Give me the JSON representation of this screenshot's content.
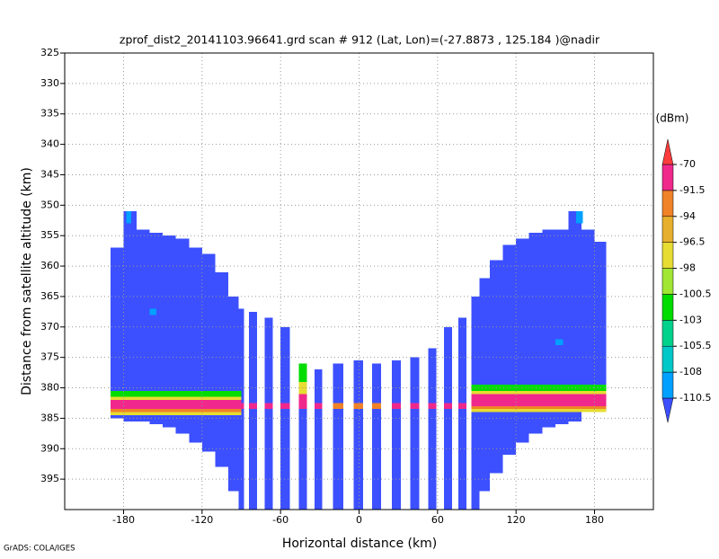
{
  "chart_data": {
    "type": "heatmap",
    "title": "zprof_dist2_20141103.96641.grd  scan # 912  (Lat, Lon)=(-27.8873 , 125.184 )@nadir",
    "x_label": "Horizontal distance (km)",
    "y_label": "Distance from satellite altitude (km)",
    "credit": "GrADS: COLA/IGES",
    "xlim": [
      -225,
      225
    ],
    "ylim": [
      325,
      400
    ],
    "y_reversed": true,
    "xticks": [
      -180,
      -120,
      -60,
      0,
      60,
      120,
      180
    ],
    "yticks": [
      325,
      330,
      335,
      340,
      345,
      350,
      355,
      360,
      365,
      370,
      375,
      380,
      385,
      390,
      395
    ],
    "grid": true,
    "colorbar": {
      "label": "(dBm)",
      "levels": [
        -110.5,
        -108,
        -105.5,
        -103,
        -100.5,
        -98,
        -96.5,
        -94,
        -91.5,
        -70
      ],
      "colors": [
        "#3c50ff",
        "#00a0ff",
        "#00c8c8",
        "#00d28c",
        "#00dc00",
        "#a0e632",
        "#e6dc32",
        "#e6af2d",
        "#f08228",
        "#f0288c",
        "#fa3c3c"
      ]
    },
    "cells": [
      {
        "x": [
          -190,
          -180
        ],
        "y": [
          357,
          385
        ],
        "value": -115
      },
      {
        "x": [
          -180,
          -170
        ],
        "y": [
          351,
          385.5
        ],
        "value": -115
      },
      {
        "x": [
          -170,
          -160
        ],
        "y": [
          354,
          385.5
        ],
        "value": -115
      },
      {
        "x": [
          -160,
          -150
        ],
        "y": [
          354.5,
          386
        ],
        "value": -115
      },
      {
        "x": [
          -150,
          -140
        ],
        "y": [
          355,
          386.5
        ],
        "value": -115
      },
      {
        "x": [
          -140,
          -130
        ],
        "y": [
          355.5,
          387.5
        ],
        "value": -115
      },
      {
        "x": [
          -130,
          -120
        ],
        "y": [
          357,
          389
        ],
        "value": -115
      },
      {
        "x": [
          -120,
          -110
        ],
        "y": [
          358,
          390.5
        ],
        "value": -115
      },
      {
        "x": [
          -110,
          -100
        ],
        "y": [
          361,
          393
        ],
        "value": -115
      },
      {
        "x": [
          -100,
          -92
        ],
        "y": [
          365,
          397
        ],
        "value": -115
      },
      {
        "x": [
          -92,
          -88
        ],
        "y": [
          367,
          400
        ],
        "value": -115
      },
      {
        "x": [
          -84,
          -78
        ],
        "y": [
          367.5,
          400
        ],
        "value": -115
      },
      {
        "x": [
          -72,
          -66
        ],
        "y": [
          368.5,
          400
        ],
        "value": -115
      },
      {
        "x": [
          -60,
          -53
        ],
        "y": [
          370,
          400
        ],
        "value": -115
      },
      {
        "x": [
          -46,
          -40
        ],
        "y": [
          376,
          400
        ],
        "value": -115
      },
      {
        "x": [
          -34,
          -28
        ],
        "y": [
          377,
          400
        ],
        "value": -115
      },
      {
        "x": [
          -20,
          -12
        ],
        "y": [
          376,
          400
        ],
        "value": -115
      },
      {
        "x": [
          -4,
          3
        ],
        "y": [
          375.5,
          400
        ],
        "value": -115
      },
      {
        "x": [
          10,
          17
        ],
        "y": [
          376,
          400
        ],
        "value": -115
      },
      {
        "x": [
          25,
          32
        ],
        "y": [
          375.5,
          400
        ],
        "value": -115
      },
      {
        "x": [
          39,
          46
        ],
        "y": [
          375,
          400
        ],
        "value": -115
      },
      {
        "x": [
          53,
          59
        ],
        "y": [
          373.5,
          400
        ],
        "value": -115
      },
      {
        "x": [
          65,
          71
        ],
        "y": [
          370,
          400
        ],
        "value": -115
      },
      {
        "x": [
          76,
          82
        ],
        "y": [
          368.5,
          400
        ],
        "value": -115
      },
      {
        "x": [
          86,
          92
        ],
        "y": [
          365,
          400
        ],
        "value": -115
      },
      {
        "x": [
          92,
          100
        ],
        "y": [
          362,
          397
        ],
        "value": -115
      },
      {
        "x": [
          100,
          110
        ],
        "y": [
          359,
          394
        ],
        "value": -115
      },
      {
        "x": [
          110,
          120
        ],
        "y": [
          356.5,
          391
        ],
        "value": -115
      },
      {
        "x": [
          120,
          130
        ],
        "y": [
          355.5,
          389
        ],
        "value": -115
      },
      {
        "x": [
          130,
          140
        ],
        "y": [
          354.5,
          387.5
        ],
        "value": -115
      },
      {
        "x": [
          140,
          150
        ],
        "y": [
          354,
          386.5
        ],
        "value": -115
      },
      {
        "x": [
          150,
          160
        ],
        "y": [
          354,
          386
        ],
        "value": -115
      },
      {
        "x": [
          160,
          170
        ],
        "y": [
          351,
          385.5
        ],
        "value": -115
      },
      {
        "x": [
          170,
          180
        ],
        "y": [
          354,
          384
        ],
        "value": -115
      },
      {
        "x": [
          180,
          189
        ],
        "y": [
          356,
          382.5
        ],
        "value": -115
      },
      {
        "x": [
          -178,
          -174
        ],
        "y": [
          351,
          353
        ],
        "value": -109
      },
      {
        "x": [
          -160,
          -155
        ],
        "y": [
          367,
          368
        ],
        "value": -109
      },
      {
        "x": [
          166,
          171
        ],
        "y": [
          351,
          353
        ],
        "value": -109
      },
      {
        "x": [
          150,
          156
        ],
        "y": [
          372,
          373
        ],
        "value": -109
      },
      {
        "x": [
          -190,
          -90
        ],
        "y": [
          380.5,
          381.5
        ],
        "value": -101.5
      },
      {
        "x": [
          -190,
          -90
        ],
        "y": [
          381.5,
          382
        ],
        "value": -97
      },
      {
        "x": [
          -190,
          -90
        ],
        "y": [
          382,
          383.5
        ],
        "value": -85
      },
      {
        "x": [
          -190,
          -90
        ],
        "y": [
          383.5,
          384
        ],
        "value": -93
      },
      {
        "x": [
          -190,
          -90
        ],
        "y": [
          384,
          384.5
        ],
        "value": -97
      },
      {
        "x": [
          -46,
          -40
        ],
        "y": [
          376,
          379
        ],
        "value": -101.5
      },
      {
        "x": [
          -46,
          -40
        ],
        "y": [
          379,
          381
        ],
        "value": -97
      },
      {
        "x": [
          -46,
          -40
        ],
        "y": [
          381,
          382.5
        ],
        "value": -85
      },
      {
        "x": [
          -92,
          -88
        ],
        "y": [
          382.5,
          383.5
        ],
        "value": -85
      },
      {
        "x": [
          -84,
          -78
        ],
        "y": [
          382.5,
          383.5
        ],
        "value": -85
      },
      {
        "x": [
          -72,
          -66
        ],
        "y": [
          382.5,
          383.5
        ],
        "value": -85
      },
      {
        "x": [
          -60,
          -53
        ],
        "y": [
          382.5,
          383.5
        ],
        "value": -85
      },
      {
        "x": [
          -46,
          -40
        ],
        "y": [
          382.5,
          383.5
        ],
        "value": -85
      },
      {
        "x": [
          -34,
          -28
        ],
        "y": [
          382.5,
          383.5
        ],
        "value": -85
      },
      {
        "x": [
          -20,
          -12
        ],
        "y": [
          382.5,
          383.5
        ],
        "value": -93
      },
      {
        "x": [
          -4,
          3
        ],
        "y": [
          382.5,
          383.5
        ],
        "value": -93
      },
      {
        "x": [
          10,
          17
        ],
        "y": [
          382.5,
          383.5
        ],
        "value": -93
      },
      {
        "x": [
          25,
          32
        ],
        "y": [
          382.5,
          383.5
        ],
        "value": -85
      },
      {
        "x": [
          39,
          46
        ],
        "y": [
          382.5,
          383.5
        ],
        "value": -85
      },
      {
        "x": [
          53,
          59
        ],
        "y": [
          382.5,
          383.5
        ],
        "value": -85
      },
      {
        "x": [
          65,
          71
        ],
        "y": [
          382.5,
          383.5
        ],
        "value": -85
      },
      {
        "x": [
          76,
          82
        ],
        "y": [
          382.5,
          383.5
        ],
        "value": -85
      },
      {
        "x": [
          86,
          189
        ],
        "y": [
          379.5,
          380.5
        ],
        "value": -101.5
      },
      {
        "x": [
          86,
          189
        ],
        "y": [
          380.5,
          381
        ],
        "value": -97
      },
      {
        "x": [
          86,
          189
        ],
        "y": [
          381,
          383
        ],
        "value": -85
      },
      {
        "x": [
          86,
          189
        ],
        "y": [
          383,
          383.5
        ],
        "value": -93
      },
      {
        "x": [
          86,
          189
        ],
        "y": [
          383.5,
          384
        ],
        "value": -97
      }
    ]
  }
}
